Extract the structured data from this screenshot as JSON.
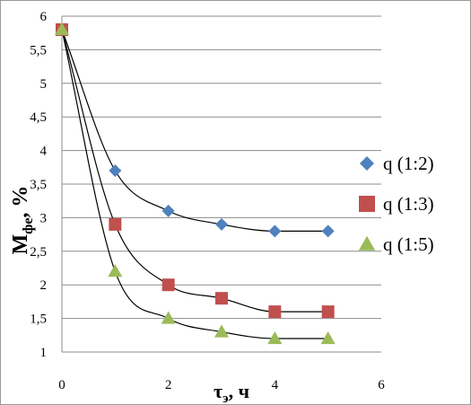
{
  "chart_data": {
    "type": "scatter",
    "xlabel_main": "τ",
    "xlabel_sub": "э",
    "xlabel_rest": ", ч",
    "ylabel_main": "M",
    "ylabel_sub": "фе",
    "ylabel_rest": ", %",
    "xlim": [
      0,
      6
    ],
    "ylim": [
      1,
      6
    ],
    "x_ticks": [
      0,
      2,
      4,
      6
    ],
    "x_tick_labels": [
      "0",
      "2",
      "4",
      "6"
    ],
    "y_ticks": [
      1,
      1.5,
      2,
      2.5,
      3,
      3.5,
      4,
      4.5,
      5,
      5.5,
      6
    ],
    "y_tick_labels": [
      "1",
      "1,5",
      "2",
      "2,5",
      "3",
      "3,5",
      "4",
      "4,5",
      "5",
      "5,5",
      "6"
    ],
    "grid": "horizontal",
    "legend_position": "right",
    "series": [
      {
        "name": "q (1:2)",
        "marker": "diamond",
        "color": "#4f81bd",
        "x": [
          0,
          1,
          2,
          3,
          4,
          5
        ],
        "y": [
          5.8,
          3.7,
          3.1,
          2.9,
          2.8,
          2.8
        ]
      },
      {
        "name": "q (1:3)",
        "marker": "square",
        "color": "#c0504d",
        "x": [
          0,
          1,
          2,
          3,
          4,
          5
        ],
        "y": [
          5.8,
          2.9,
          2.0,
          1.8,
          1.6,
          1.6
        ]
      },
      {
        "name": "q (1:5)",
        "marker": "triangle",
        "color": "#9bbb59",
        "x": [
          0,
          1,
          2,
          3,
          4,
          5
        ],
        "y": [
          5.8,
          2.2,
          1.5,
          1.3,
          1.2,
          1.2
        ]
      }
    ]
  }
}
